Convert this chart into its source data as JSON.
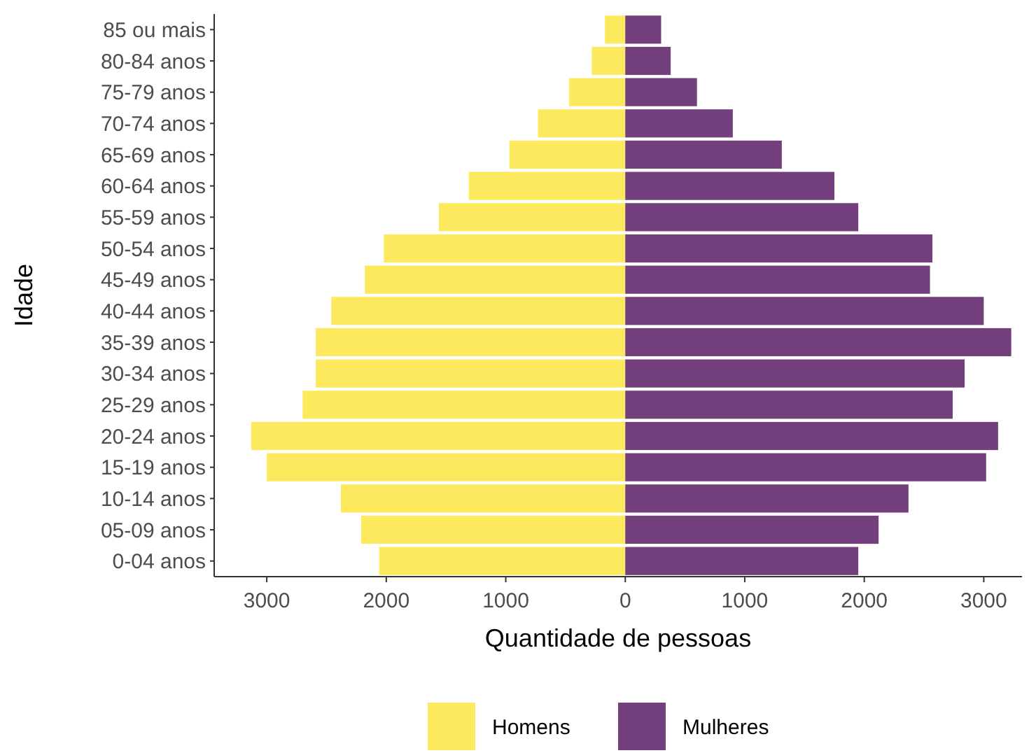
{
  "chart_data": {
    "type": "bar",
    "orientation": "horizontal",
    "stacked": true,
    "categories": [
      "85 ou mais",
      "80-84 anos",
      "75-79 anos",
      "70-74 anos",
      "65-69 anos",
      "60-64 anos",
      "55-59 anos",
      "50-54 anos",
      "45-49 anos",
      "40-44 anos",
      "35-39 anos",
      "30-34 anos",
      "25-29 anos",
      "20-24 anos",
      "15-19 anos",
      "10-14 anos",
      "05-09 anos",
      "0-04 anos"
    ],
    "series": [
      {
        "name": "Homens",
        "color": "#fde95e",
        "values": [
          -170,
          -280,
          -470,
          -730,
          -970,
          -1310,
          -1560,
          -2020,
          -2180,
          -2460,
          -2590,
          -2590,
          -2700,
          -3130,
          -3000,
          -2380,
          -2210,
          -2060
        ]
      },
      {
        "name": "Mulheres",
        "color": "#73407d",
        "values": [
          300,
          380,
          600,
          900,
          1310,
          1750,
          1950,
          2570,
          2550,
          3000,
          3230,
          2840,
          2740,
          3120,
          3020,
          2370,
          2120,
          1950
        ]
      }
    ],
    "xlim": [
      -3440,
      3320
    ],
    "xticks": [
      {
        "value": -3000,
        "label": "3000"
      },
      {
        "value": -2000,
        "label": "2000"
      },
      {
        "value": -1000,
        "label": "1000"
      },
      0,
      1000,
      2000,
      3000
    ],
    "xlabel": "Quantidade de pessoas",
    "ylabel": "Idade",
    "legend": "bottom",
    "grid": false
  }
}
